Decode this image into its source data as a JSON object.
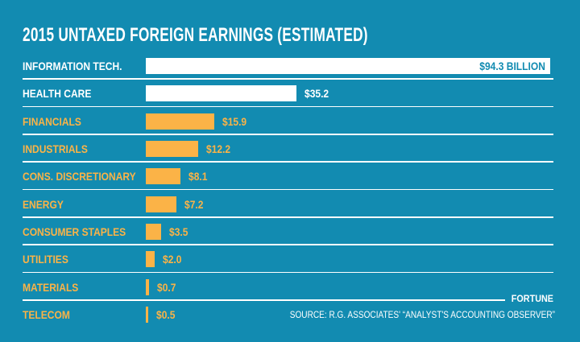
{
  "chart_data": {
    "type": "bar",
    "orientation": "horizontal",
    "title": "2015 UNTAXED FOREIGN EARNINGS (ESTIMATED)",
    "categories": [
      "INFORMATION TECH.",
      "HEALTH CARE",
      "FINANCIALS",
      "INDUSTRIALS",
      "CONS. DISCRETIONARY",
      "ENERGY",
      "CONSUMER STAPLES",
      "UTILITIES",
      "MATERIALS",
      "TELECOM"
    ],
    "values": [
      94.3,
      35.2,
      15.9,
      12.2,
      8.1,
      7.2,
      3.5,
      2.0,
      0.7,
      0.5
    ],
    "data_labels": [
      "$94.3 BILLION",
      "$35.2",
      "$15.9",
      "$12.2",
      "$8.1",
      "$7.2",
      "$3.5",
      "$2.0",
      "$0.7",
      "$0.5"
    ],
    "unit": "billion USD",
    "xlim": [
      0,
      94.3
    ],
    "grid": false,
    "highlight_colors": [
      "#ffffff",
      "#ffffff",
      "#fbb347",
      "#fbb347",
      "#fbb347",
      "#fbb347",
      "#fbb347",
      "#fbb347",
      "#fbb347",
      "#fbb347"
    ]
  },
  "colors": {
    "background": "#128bb1",
    "highlight": "#ffffff",
    "bar": "#fbb347"
  },
  "credit": "FORTUNE",
  "source": "SOURCE: R.G. ASSOCIATES' “ANALYST'S ACCOUNTING OBSERVER”"
}
